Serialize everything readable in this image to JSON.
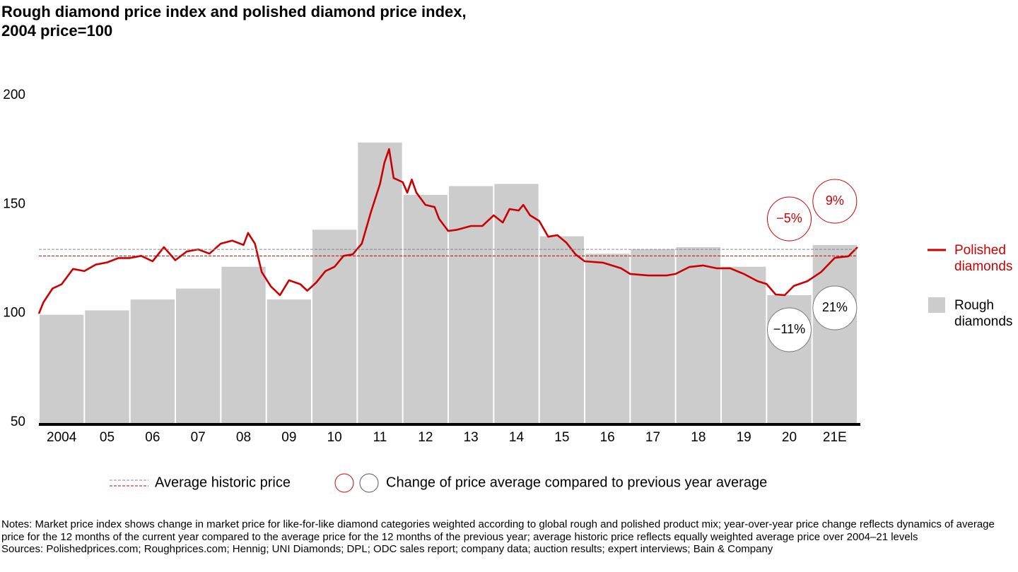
{
  "chart_data": {
    "type": "bar",
    "title": [
      "Rough diamond price index and polished diamond price index,",
      "2004 price=100"
    ],
    "categories": [
      "2004",
      "05",
      "06",
      "07",
      "08",
      "09",
      "10",
      "11",
      "12",
      "13",
      "14",
      "15",
      "16",
      "17",
      "18",
      "19",
      "20",
      "21E"
    ],
    "ylim": [
      50,
      200
    ],
    "yticks": [
      50,
      100,
      150,
      200
    ],
    "xlim": [
      2004,
      2022
    ],
    "grid": false,
    "legend": "right",
    "series": [
      {
        "name": "Polished diamonds",
        "type": "line",
        "color": "#cc0000",
        "x": [
          2004.0,
          2004.1,
          2004.3,
          2004.5,
          2004.75,
          2005.0,
          2005.25,
          2005.5,
          2005.75,
          2006.0,
          2006.25,
          2006.5,
          2006.75,
          2007.0,
          2007.25,
          2007.5,
          2007.75,
          2008.0,
          2008.25,
          2008.5,
          2008.6,
          2008.75,
          2008.9,
          2009.1,
          2009.3,
          2009.5,
          2009.75,
          2009.9,
          2010.1,
          2010.3,
          2010.5,
          2010.7,
          2010.9,
          2011.1,
          2011.3,
          2011.5,
          2011.6,
          2011.7,
          2011.8,
          2012.0,
          2012.1,
          2012.2,
          2012.3,
          2012.5,
          2012.7,
          2012.8,
          2013.0,
          2013.2,
          2013.5,
          2013.75,
          2014.0,
          2014.2,
          2014.35,
          2014.55,
          2014.65,
          2014.8,
          2015.0,
          2015.2,
          2015.4,
          2015.6,
          2015.8,
          2016.0,
          2016.4,
          2016.8,
          2017.0,
          2017.4,
          2017.8,
          2018.0,
          2018.3,
          2018.6,
          2018.9,
          2019.2,
          2019.5,
          2019.8,
          2020.0,
          2020.2,
          2020.4,
          2020.6,
          2020.9,
          2021.2,
          2021.5,
          2021.8,
          2022.0
        ],
        "values": [
          100.5,
          105.7,
          112,
          114,
          121,
          120,
          123,
          124,
          126,
          126,
          127,
          124.5,
          131,
          125,
          129,
          130,
          128,
          132.6,
          134,
          132,
          137.5,
          132.6,
          119.6,
          113,
          109,
          115.8,
          114,
          111,
          114.8,
          120,
          122,
          127,
          127.7,
          132.6,
          147,
          160,
          169.9,
          176,
          162.7,
          160.8,
          156,
          162,
          156,
          150.4,
          149.4,
          144,
          138.4,
          139,
          140.7,
          140.7,
          145.6,
          142.3,
          148.5,
          147.8,
          150.4,
          145.6,
          143,
          135.8,
          136.5,
          133,
          127.7,
          124.5,
          123.9,
          121.3,
          118.7,
          118,
          118,
          118.7,
          121.9,
          122.6,
          121.3,
          121.3,
          118.7,
          115.4,
          114.1,
          109.3,
          109,
          113.2,
          115.4,
          119.6,
          126.1,
          126.8,
          131
        ],
        "change_labels": [
          "−5%",
          "9%"
        ]
      },
      {
        "name": "Rough diamonds",
        "type": "bar",
        "color": "#cccccc",
        "values": [
          100,
          102,
          107,
          112,
          122,
          107,
          139,
          179,
          155,
          159,
          160,
          136,
          128,
          130,
          131,
          122,
          109,
          132
        ],
        "change_labels": [
          "−11%",
          "21%"
        ]
      }
    ],
    "reference_lines": [
      {
        "value": 130,
        "color": "#888888"
      },
      {
        "value": 127,
        "color": "#cc0000"
      }
    ],
    "reference_label": "Average historic price",
    "change_label": "Change of price average compared to previous year average",
    "notes": "Notes: Market price index shows change in market price for like-for-like diamond categories weighted according to global rough and polished product mix; year-over-year price change reflects dynamics of average price for the 12 months of the current year compared to the average price for the 12 months of the previous year; average historic price reflects equally weighted average price over 2004–21 levels",
    "sources": "Sources: Polishedprices.com; Roughprices.com; Hennig; UNI Diamonds; DPL; ODC sales report; company data; auction results; expert interviews; Bain & Company"
  }
}
